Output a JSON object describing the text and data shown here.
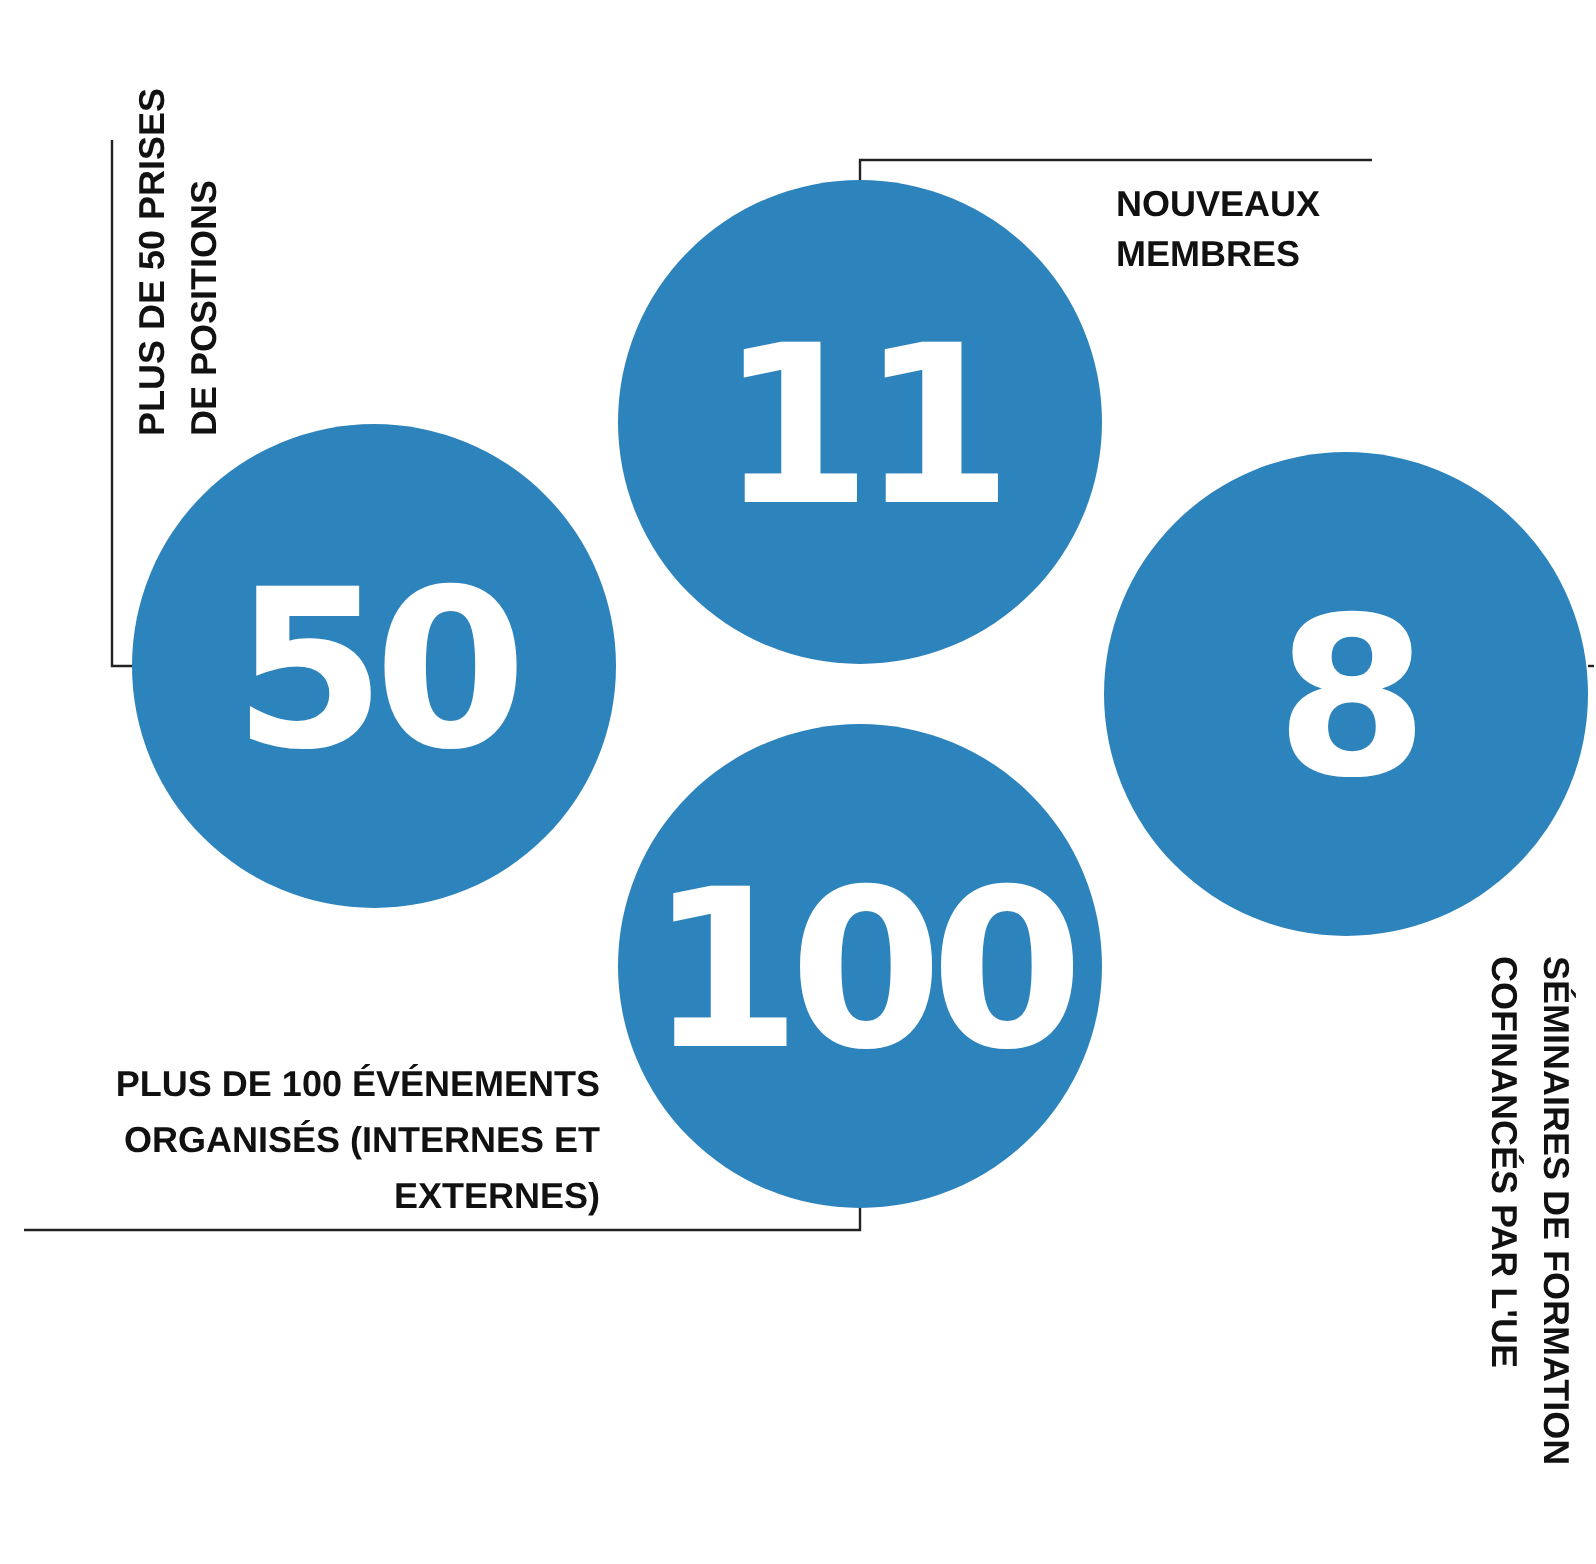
{
  "chart_data": {
    "type": "other",
    "categories": [
      "PLUS DE 50 PRISES DE POSITIONS",
      "NOUVEAUX MEMBRES",
      "SÉMINAIRES DE FORMATION COFINANCÉS PAR L'UE",
      "PLUS DE 100 ÉVÉNEMENTS ORGANISÉS (INTERNES ET EXTERNES)"
    ],
    "values": [
      50,
      11,
      8,
      100
    ],
    "data_labels": true,
    "colors": [
      "#2d83bb",
      "#2d83bb",
      "#2d83bb",
      "#2d83bb"
    ]
  }
}
